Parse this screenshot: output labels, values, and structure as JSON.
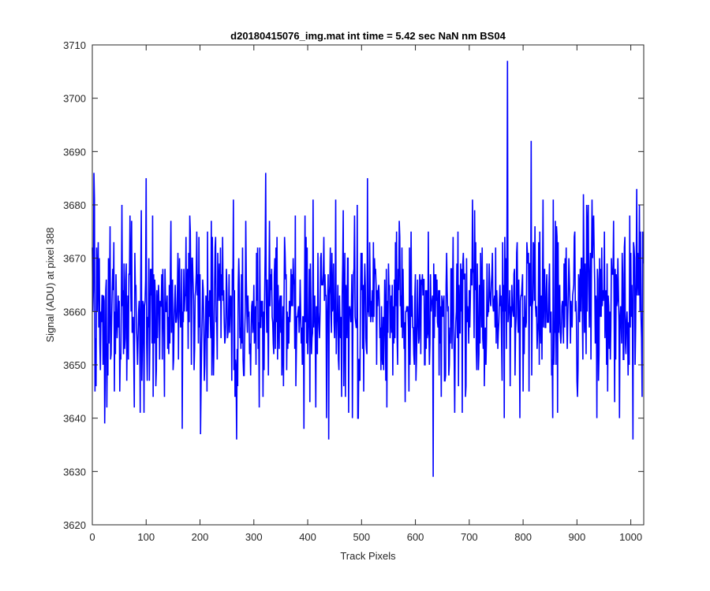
{
  "chart_data": {
    "type": "line",
    "title": "d20180415076_img.mat int time = 5.42 sec  NaN nm BS04",
    "xlabel": "Track Pixels",
    "ylabel": "Signal (ADU) at pixel 388",
    "xlim": [
      0,
      1024
    ],
    "ylim": [
      3620,
      3710
    ],
    "xticks": [
      0,
      100,
      200,
      300,
      400,
      500,
      600,
      700,
      800,
      900,
      1000
    ],
    "yticks": [
      3620,
      3630,
      3640,
      3650,
      3660,
      3670,
      3680,
      3690,
      3700,
      3710
    ],
    "grid": false,
    "series": [
      {
        "color": "#0000ff",
        "generated_noise": {
          "n_points": 1024,
          "mean": 3660.5,
          "std": 8.2,
          "seed": 20180415
        },
        "notable_points": [
          {
            "x": 1,
            "y": 3660
          },
          {
            "x": 3,
            "y": 3686
          },
          {
            "x": 5,
            "y": 3645
          },
          {
            "x": 23,
            "y": 3639
          },
          {
            "x": 89,
            "y": 3641
          },
          {
            "x": 100,
            "y": 3685
          },
          {
            "x": 167,
            "y": 3638
          },
          {
            "x": 201,
            "y": 3637
          },
          {
            "x": 268,
            "y": 3636
          },
          {
            "x": 322,
            "y": 3686
          },
          {
            "x": 393,
            "y": 3638
          },
          {
            "x": 439,
            "y": 3636
          },
          {
            "x": 511,
            "y": 3685
          },
          {
            "x": 633,
            "y": 3629
          },
          {
            "x": 706,
            "y": 3681
          },
          {
            "x": 771,
            "y": 3707
          },
          {
            "x": 815,
            "y": 3692
          },
          {
            "x": 856,
            "y": 3681
          },
          {
            "x": 912,
            "y": 3682
          },
          {
            "x": 1004,
            "y": 3636
          },
          {
            "x": 1011,
            "y": 3683
          },
          {
            "x": 1016,
            "y": 3680
          },
          {
            "x": 1021,
            "y": 3644
          },
          {
            "x": 1023,
            "y": 3669
          }
        ]
      }
    ]
  },
  "colors": {
    "line": "#0000ff",
    "axes": "#262626",
    "background": "#ffffff"
  }
}
